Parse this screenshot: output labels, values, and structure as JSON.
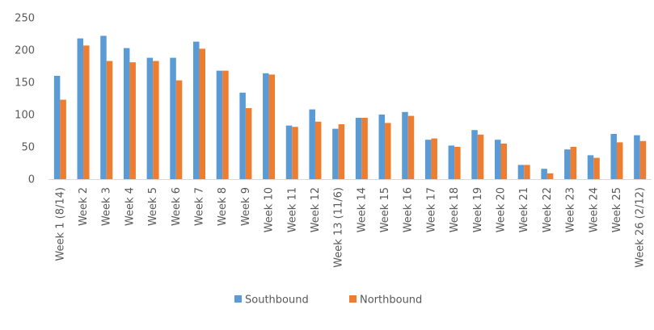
{
  "chart_data": {
    "type": "bar",
    "title": "",
    "xlabel": "",
    "ylabel": "",
    "ylim": [
      0,
      250
    ],
    "yticks": [
      0,
      50,
      100,
      150,
      200,
      250
    ],
    "grid": false,
    "legend_position": "bottom",
    "categories": [
      "Week 1 (8/14)",
      "Week 2",
      "Week 3",
      "Week 4",
      "Week 5",
      "Week 6",
      "Week 7",
      "Week 8",
      "Week 9",
      "Week 10",
      "Week 11",
      "Week 12",
      "Week 13 (11/6)",
      "Week 14",
      "Week 15",
      "Week 16",
      "Week 17",
      "Week 18",
      "Week 19",
      "Week 20",
      "Week 21",
      "Week 22",
      "Week 23",
      "Week 24",
      "Week 25",
      "Week 26 (2/12)"
    ],
    "series": [
      {
        "name": "Southbound",
        "color": "#5B9BD5",
        "values": [
          160,
          218,
          222,
          203,
          188,
          188,
          213,
          168,
          134,
          164,
          83,
          108,
          78,
          95,
          100,
          104,
          61,
          52,
          76,
          61,
          22,
          16,
          46,
          37,
          70,
          68
        ]
      },
      {
        "name": "Northbound",
        "color": "#ED7D31",
        "values": [
          123,
          207,
          183,
          181,
          183,
          153,
          202,
          168,
          110,
          162,
          81,
          89,
          85,
          95,
          87,
          98,
          63,
          50,
          69,
          55,
          22,
          9,
          50,
          33,
          57,
          59
        ]
      }
    ]
  }
}
